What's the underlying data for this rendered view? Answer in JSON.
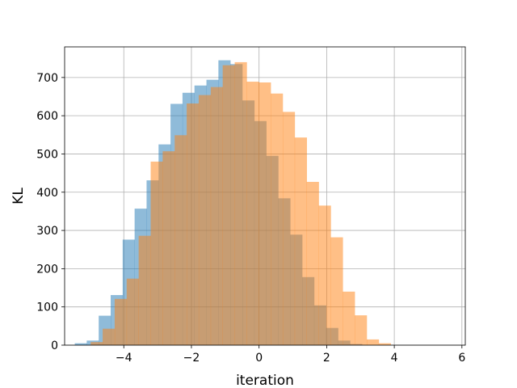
{
  "chart_data": {
    "type": "histogram",
    "title": "",
    "xlabel": "iteration",
    "ylabel": "KL",
    "xlim": [
      -5.75,
      6.1
    ],
    "ylim": [
      0,
      780
    ],
    "xticks": [
      -4,
      -2,
      0,
      2,
      4,
      6
    ],
    "xtick_labels": [
      "−4",
      "−2",
      "0",
      "2",
      "4",
      "6"
    ],
    "yticks": [
      0,
      100,
      200,
      300,
      400,
      500,
      600,
      700
    ],
    "ytick_labels": [
      "0",
      "100",
      "200",
      "300",
      "400",
      "500",
      "600",
      "700"
    ],
    "grid": true,
    "legend": "none",
    "series": [
      {
        "color": "#1f77b4",
        "opacity": 0.5,
        "bin_width": 0.354,
        "bin_start": -5.45,
        "counts": [
          5,
          12,
          77,
          131,
          276,
          357,
          431,
          525,
          631,
          660,
          679,
          694,
          745,
          735,
          640,
          586,
          495,
          384,
          289,
          178,
          104,
          45,
          12,
          3
        ]
      },
      {
        "color": "#ff7f0e",
        "opacity": 0.5,
        "bin_width": 0.355,
        "bin_start": -4.98,
        "counts": [
          8,
          43,
          121,
          174,
          286,
          480,
          507,
          549,
          632,
          654,
          675,
          732,
          740,
          689,
          687,
          658,
          610,
          543,
          427,
          365,
          282,
          140,
          78,
          15,
          5
        ]
      }
    ]
  }
}
